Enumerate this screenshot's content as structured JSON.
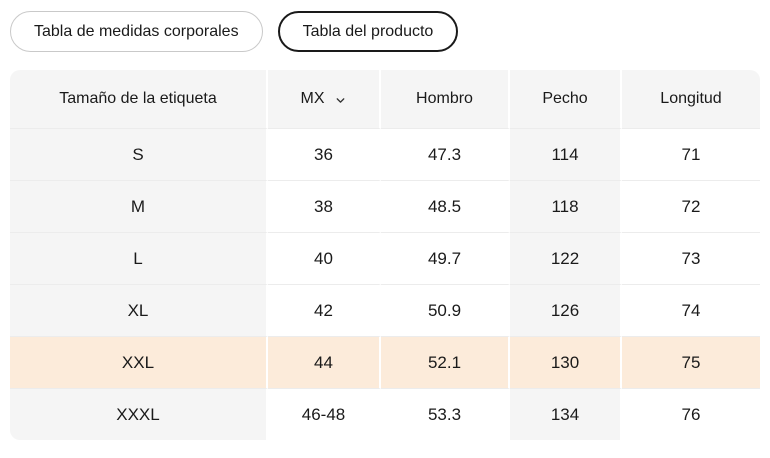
{
  "tabs": [
    {
      "label": "Tabla de medidas corporales",
      "selected": false
    },
    {
      "label": "Tabla del producto",
      "selected": true
    }
  ],
  "table": {
    "columns": [
      "Tamaño de la etiqueta",
      "MX",
      "Hombro",
      "Pecho",
      "Longitud"
    ],
    "unit_selector": {
      "value": "MX",
      "icon": "chevron-down-icon"
    },
    "shaded_column_indexes": [
      0,
      3
    ],
    "highlighted_row_index": 4,
    "rows": [
      [
        "S",
        "36",
        "47.3",
        "114",
        "71"
      ],
      [
        "M",
        "38",
        "48.5",
        "118",
        "72"
      ],
      [
        "L",
        "40",
        "49.7",
        "122",
        "73"
      ],
      [
        "XL",
        "42",
        "50.9",
        "126",
        "74"
      ],
      [
        "XXL",
        "44",
        "52.1",
        "130",
        "75"
      ],
      [
        "XXXL",
        "46-48",
        "53.3",
        "134",
        "76"
      ]
    ]
  },
  "colors": {
    "header_bg": "#f5f5f5",
    "shaded_column_bg": "#f5f5f5",
    "highlight_row_bg": "#fcebda",
    "selected_tab_border": "#1a1a1a",
    "unselected_tab_border": "#c9c9c9",
    "row_divider": "#ececec",
    "text": "#1a1a1a"
  }
}
